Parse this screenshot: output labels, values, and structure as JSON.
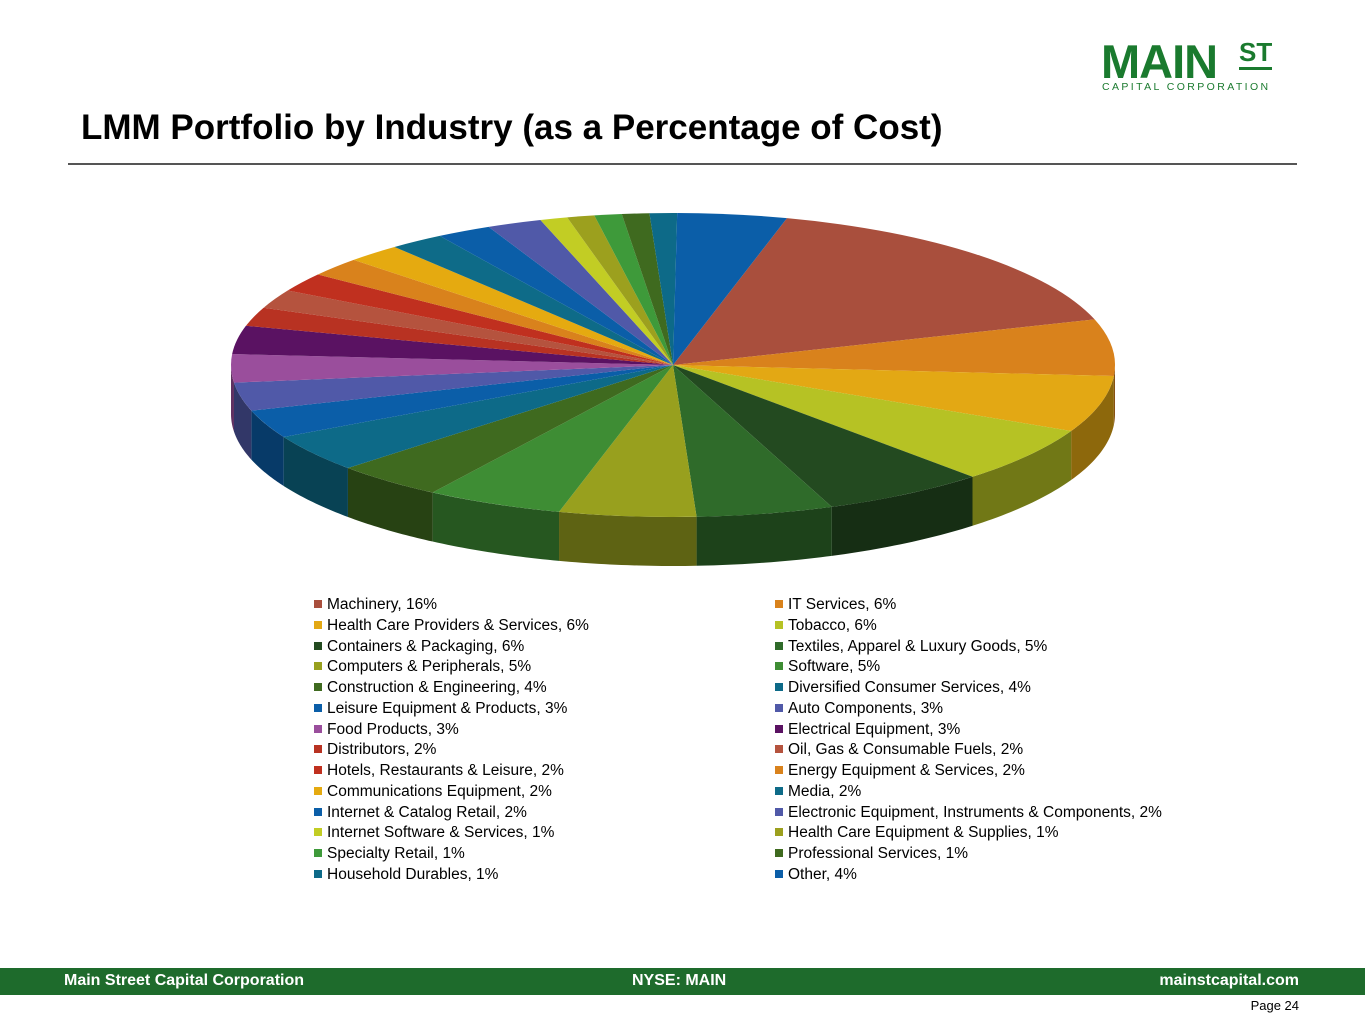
{
  "logo": {
    "main": "MAIN",
    "st": "ST",
    "sub": "CAPITAL CORPORATION"
  },
  "title": "LMM Portfolio by Industry (as a Percentage of Cost)",
  "footer": {
    "left": "Main Street Capital Corporation",
    "center": "NYSE: MAIN",
    "right": "mainstcapital.com"
  },
  "page": "Page  24",
  "chart_data": {
    "type": "pie",
    "title": "LMM Portfolio by Industry (as a Percentage of Cost)",
    "slices": [
      {
        "label": "Machinery, 16%",
        "value": 16,
        "color": "#a94f3d"
      },
      {
        "label": "IT Services, 6%",
        "value": 6,
        "color": "#d9821c"
      },
      {
        "label": "Health Care Providers & Services, 6%",
        "value": 6,
        "color": "#e3a814"
      },
      {
        "label": "Tobacco, 6%",
        "value": 6,
        "color": "#b6c224"
      },
      {
        "label": "Containers & Packaging, 6%",
        "value": 6,
        "color": "#234a20"
      },
      {
        "label": "Textiles, Apparel & Luxury Goods, 5%",
        "value": 5,
        "color": "#2f6b2a"
      },
      {
        "label": "Computers & Peripherals, 5%",
        "value": 5,
        "color": "#98a01e"
      },
      {
        "label": "Software, 5%",
        "value": 5,
        "color": "#3e8d34"
      },
      {
        "label": "Construction & Engineering, 4%",
        "value": 4,
        "color": "#3f6a1f"
      },
      {
        "label": "Diversified Consumer Services, 4%",
        "value": 4,
        "color": "#0d6a88"
      },
      {
        "label": "Leisure Equipment & Products, 3%",
        "value": 3,
        "color": "#0b5ea8"
      },
      {
        "label": "Auto Components, 3%",
        "value": 3,
        "color": "#5059a8"
      },
      {
        "label": "Food Products, 3%",
        "value": 3,
        "color": "#9a4e9c"
      },
      {
        "label": "Electrical Equipment, 3%",
        "value": 3,
        "color": "#5a1262"
      },
      {
        "label": "Distributors, 2%",
        "value": 2,
        "color": "#b83222"
      },
      {
        "label": "Oil, Gas & Consumable Fuels, 2%",
        "value": 2,
        "color": "#b5533e"
      },
      {
        "label": "Hotels, Restaurants & Leisure, 2%",
        "value": 2,
        "color": "#c0301f"
      },
      {
        "label": "Energy Equipment & Services, 2%",
        "value": 2,
        "color": "#d9821c"
      },
      {
        "label": "Communications Equipment, 2%",
        "value": 2,
        "color": "#e5aa10"
      },
      {
        "label": "Media, 2%",
        "value": 2,
        "color": "#0e6b88"
      },
      {
        "label": "Internet & Catalog Retail, 2%",
        "value": 2,
        "color": "#0b5ea8"
      },
      {
        "label": "Electronic Equipment, Instruments & Components, 2%",
        "value": 2,
        "color": "#5059a8"
      },
      {
        "label": "Internet Software & Services, 1%",
        "value": 1,
        "color": "#c2cd24"
      },
      {
        "label": "Health Care Equipment & Supplies, 1%",
        "value": 1,
        "color": "#9ca01e"
      },
      {
        "label": "Specialty Retail, 1%",
        "value": 1,
        "color": "#3e9a3a"
      },
      {
        "label": "Professional Services, 1%",
        "value": 1,
        "color": "#3f6a1f"
      },
      {
        "label": "Household Durables, 1%",
        "value": 1,
        "color": "#0d6a88"
      },
      {
        "label": "Other, 4%",
        "value": 4,
        "color": "#0b5ea8"
      }
    ]
  }
}
